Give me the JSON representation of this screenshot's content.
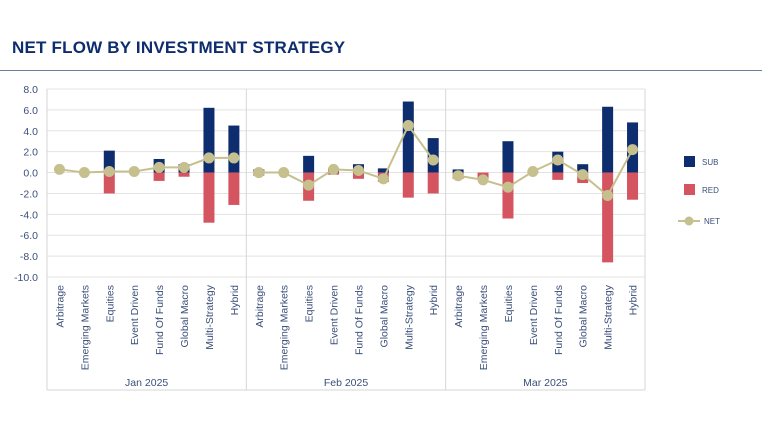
{
  "title": "NET FLOW BY INVESTMENT STRATEGY",
  "chart_data": {
    "type": "bar",
    "title": "NET FLOW BY INVESTMENT STRATEGY",
    "groups": [
      "Jan 2025",
      "Feb 2025",
      "Mar 2025"
    ],
    "categories": [
      "Arbitrage",
      "Emerging Markets",
      "Equities",
      "Event Driven",
      "Fund Of Funds",
      "Global Macro",
      "Multi-Strategy",
      "Hybrid"
    ],
    "ylim": [
      -10,
      8
    ],
    "yticks": [
      "8.0",
      "6.0",
      "4.0",
      "2.0",
      "0.0",
      "-2.0",
      "-4.0",
      "-6.0",
      "-8.0",
      "-10.0"
    ],
    "ytick_values": [
      8,
      6,
      4,
      2,
      0,
      -2,
      -4,
      -6,
      -8,
      -10
    ],
    "grid": true,
    "legend_placement": "right",
    "series": [
      {
        "name": "SUB",
        "type": "bar",
        "color": "#0d2d6e",
        "values": [
          [
            0.0,
            0.0,
            2.1,
            0.0,
            1.3,
            0.8,
            6.2,
            4.5
          ],
          [
            0.3,
            0.0,
            1.6,
            0.4,
            0.8,
            0.4,
            6.8,
            3.3
          ],
          [
            0.3,
            0.0,
            3.0,
            0.1,
            2.0,
            0.8,
            6.3,
            4.8
          ]
        ]
      },
      {
        "name": "RED",
        "type": "bar",
        "color": "#d4545f",
        "values": [
          [
            0.0,
            0.0,
            -2.0,
            0.0,
            -0.8,
            -0.4,
            -4.8,
            -3.1
          ],
          [
            -0.3,
            0.0,
            -2.7,
            -0.2,
            -0.6,
            -0.9,
            -2.4,
            -2.0
          ],
          [
            -0.6,
            -0.6,
            -4.4,
            0.0,
            -0.7,
            -1.0,
            -8.6,
            -2.6
          ]
        ]
      },
      {
        "name": "NET",
        "type": "line",
        "color": "#c6c08e",
        "values": [
          [
            0.3,
            0.0,
            0.1,
            0.1,
            0.5,
            0.5,
            1.4,
            1.4
          ],
          [
            0.0,
            0.0,
            -1.2,
            0.3,
            0.2,
            -0.6,
            4.5,
            1.2
          ],
          [
            -0.3,
            -0.7,
            -1.4,
            0.1,
            1.2,
            -0.2,
            -2.2,
            2.2
          ]
        ]
      }
    ]
  }
}
